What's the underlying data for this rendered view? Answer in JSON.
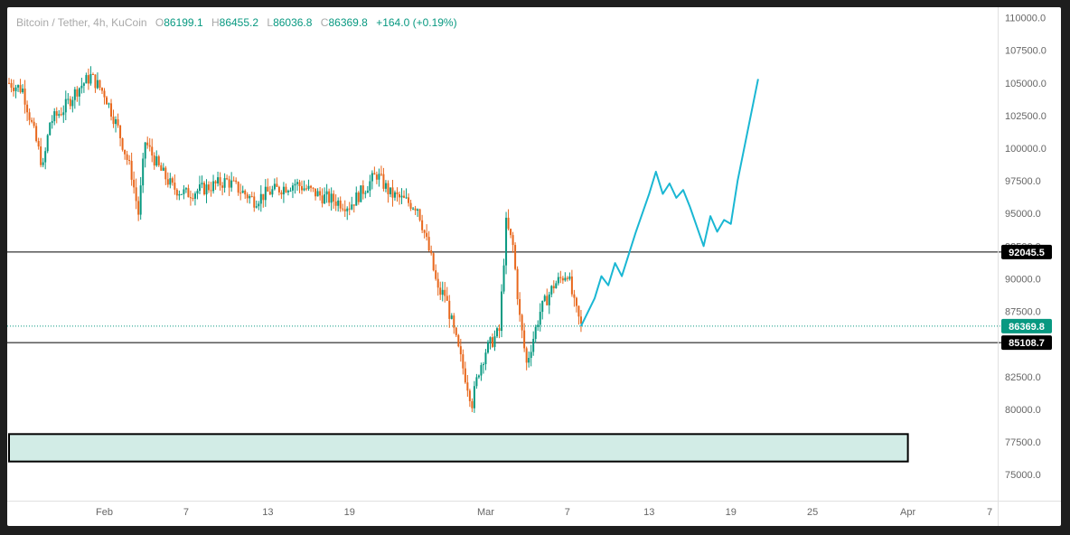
{
  "legend": {
    "symbol": "Bitcoin / Tether, 4h, KuCoin",
    "open_label": "O",
    "open": "86199.1",
    "high_label": "H",
    "high": "86455.2",
    "low_label": "L",
    "low": "86036.8",
    "close_label": "C",
    "close": "86369.8",
    "change": "+164.0 (+0.19%)"
  },
  "colors": {
    "up": "#089981",
    "down": "#e8671c",
    "projection": "#1ab7d3",
    "zone_fill": "#d2ece6",
    "level_line": "#000000",
    "current_line": "#089981"
  },
  "chart_data": {
    "type": "candlestick",
    "title": "Bitcoin / Tether, 4h, KuCoin",
    "ylim": [
      73000,
      110800
    ],
    "y_ticks": [
      "110000.0",
      "107500.0",
      "105000.0",
      "102500.0",
      "100000.0",
      "97500.0",
      "95000.0",
      "92500.0",
      "90000.0",
      "87500.0",
      "85000.0",
      "82500.0",
      "80000.0",
      "77500.0",
      "75000.0"
    ],
    "x_ticks": [
      "Feb",
      "7",
      "13",
      "19",
      "Mar",
      "7",
      "13",
      "19",
      "25",
      "Apr",
      "7"
    ],
    "x_tick_dates": [
      "2025-02-01",
      "2025-02-07",
      "2025-02-13",
      "2025-02-19",
      "2025-03-01",
      "2025-03-07",
      "2025-03-13",
      "2025-03-19",
      "2025-03-25",
      "2025-04-01",
      "2025-04-07"
    ],
    "price_path": [
      {
        "date": "2025-01-25",
        "price": 105000
      },
      {
        "date": "2025-01-26",
        "price": 104500
      },
      {
        "date": "2025-01-27",
        "price": 100500
      },
      {
        "date": "2025-01-27T12",
        "price": 98500
      },
      {
        "date": "2025-01-28",
        "price": 102000
      },
      {
        "date": "2025-01-29",
        "price": 103000
      },
      {
        "date": "2025-01-30",
        "price": 104500
      },
      {
        "date": "2025-01-31",
        "price": 105500
      },
      {
        "date": "2025-02-01",
        "price": 104200
      },
      {
        "date": "2025-02-02",
        "price": 101500
      },
      {
        "date": "2025-02-03",
        "price": 98000
      },
      {
        "date": "2025-02-03T12",
        "price": 95000
      },
      {
        "date": "2025-02-04",
        "price": 100500
      },
      {
        "date": "2025-02-05",
        "price": 98500
      },
      {
        "date": "2025-02-06",
        "price": 97000
      },
      {
        "date": "2025-02-07",
        "price": 96500
      },
      {
        "date": "2025-02-08",
        "price": 96800
      },
      {
        "date": "2025-02-10",
        "price": 97500
      },
      {
        "date": "2025-02-12",
        "price": 96000
      },
      {
        "date": "2025-02-13",
        "price": 96600
      },
      {
        "date": "2025-02-15",
        "price": 97300
      },
      {
        "date": "2025-02-17",
        "price": 96300
      },
      {
        "date": "2025-02-19",
        "price": 95600
      },
      {
        "date": "2025-02-21",
        "price": 98000
      },
      {
        "date": "2025-02-22",
        "price": 96500
      },
      {
        "date": "2025-02-24",
        "price": 95500
      },
      {
        "date": "2025-02-25",
        "price": 91500
      },
      {
        "date": "2025-02-25T12",
        "price": 89000
      },
      {
        "date": "2025-02-26",
        "price": 88800
      },
      {
        "date": "2025-02-27",
        "price": 84500
      },
      {
        "date": "2025-02-28",
        "price": 80500
      },
      {
        "date": "2025-02-28T12",
        "price": 83000
      },
      {
        "date": "2025-03-01",
        "price": 84500
      },
      {
        "date": "2025-03-02",
        "price": 86000
      },
      {
        "date": "2025-03-02T12",
        "price": 94200
      },
      {
        "date": "2025-03-03",
        "price": 92500
      },
      {
        "date": "2025-03-03T12",
        "price": 87000
      },
      {
        "date": "2025-03-04",
        "price": 83500
      },
      {
        "date": "2025-03-05",
        "price": 87500
      },
      {
        "date": "2025-03-06",
        "price": 89500
      },
      {
        "date": "2025-03-07",
        "price": 90500
      },
      {
        "date": "2025-03-07T12",
        "price": 88000
      },
      {
        "date": "2025-03-08",
        "price": 86369.8
      }
    ],
    "projection": [
      {
        "date": "2025-03-08",
        "price": 86369.8
      },
      {
        "date": "2025-03-09",
        "price": 88500
      },
      {
        "date": "2025-03-09T12",
        "price": 90200
      },
      {
        "date": "2025-03-10",
        "price": 89500
      },
      {
        "date": "2025-03-10T12",
        "price": 91200
      },
      {
        "date": "2025-03-11",
        "price": 90200
      },
      {
        "date": "2025-03-12",
        "price": 93500
      },
      {
        "date": "2025-03-13",
        "price": 96500
      },
      {
        "date": "2025-03-13T12",
        "price": 98200
      },
      {
        "date": "2025-03-14",
        "price": 96500
      },
      {
        "date": "2025-03-14T12",
        "price": 97300
      },
      {
        "date": "2025-03-15",
        "price": 96200
      },
      {
        "date": "2025-03-15T12",
        "price": 96800
      },
      {
        "date": "2025-03-16",
        "price": 95500
      },
      {
        "date": "2025-03-17",
        "price": 92500
      },
      {
        "date": "2025-03-17T12",
        "price": 94800
      },
      {
        "date": "2025-03-18",
        "price": 93600
      },
      {
        "date": "2025-03-18T12",
        "price": 94500
      },
      {
        "date": "2025-03-19",
        "price": 94200
      },
      {
        "date": "2025-03-19T12",
        "price": 97500
      },
      {
        "date": "2025-03-21",
        "price": 105300
      }
    ],
    "levels": [
      {
        "value": 92045.5,
        "label": "92045.5"
      },
      {
        "value": 85108.7,
        "label": "85108.7"
      }
    ],
    "current_price": {
      "value": 86369.8,
      "label": "86369.8"
    },
    "demand_zone": {
      "from": 76000,
      "to": 78100,
      "start_date": "2025-01-25",
      "end_date": "2025-04-01"
    },
    "grid": false
  }
}
